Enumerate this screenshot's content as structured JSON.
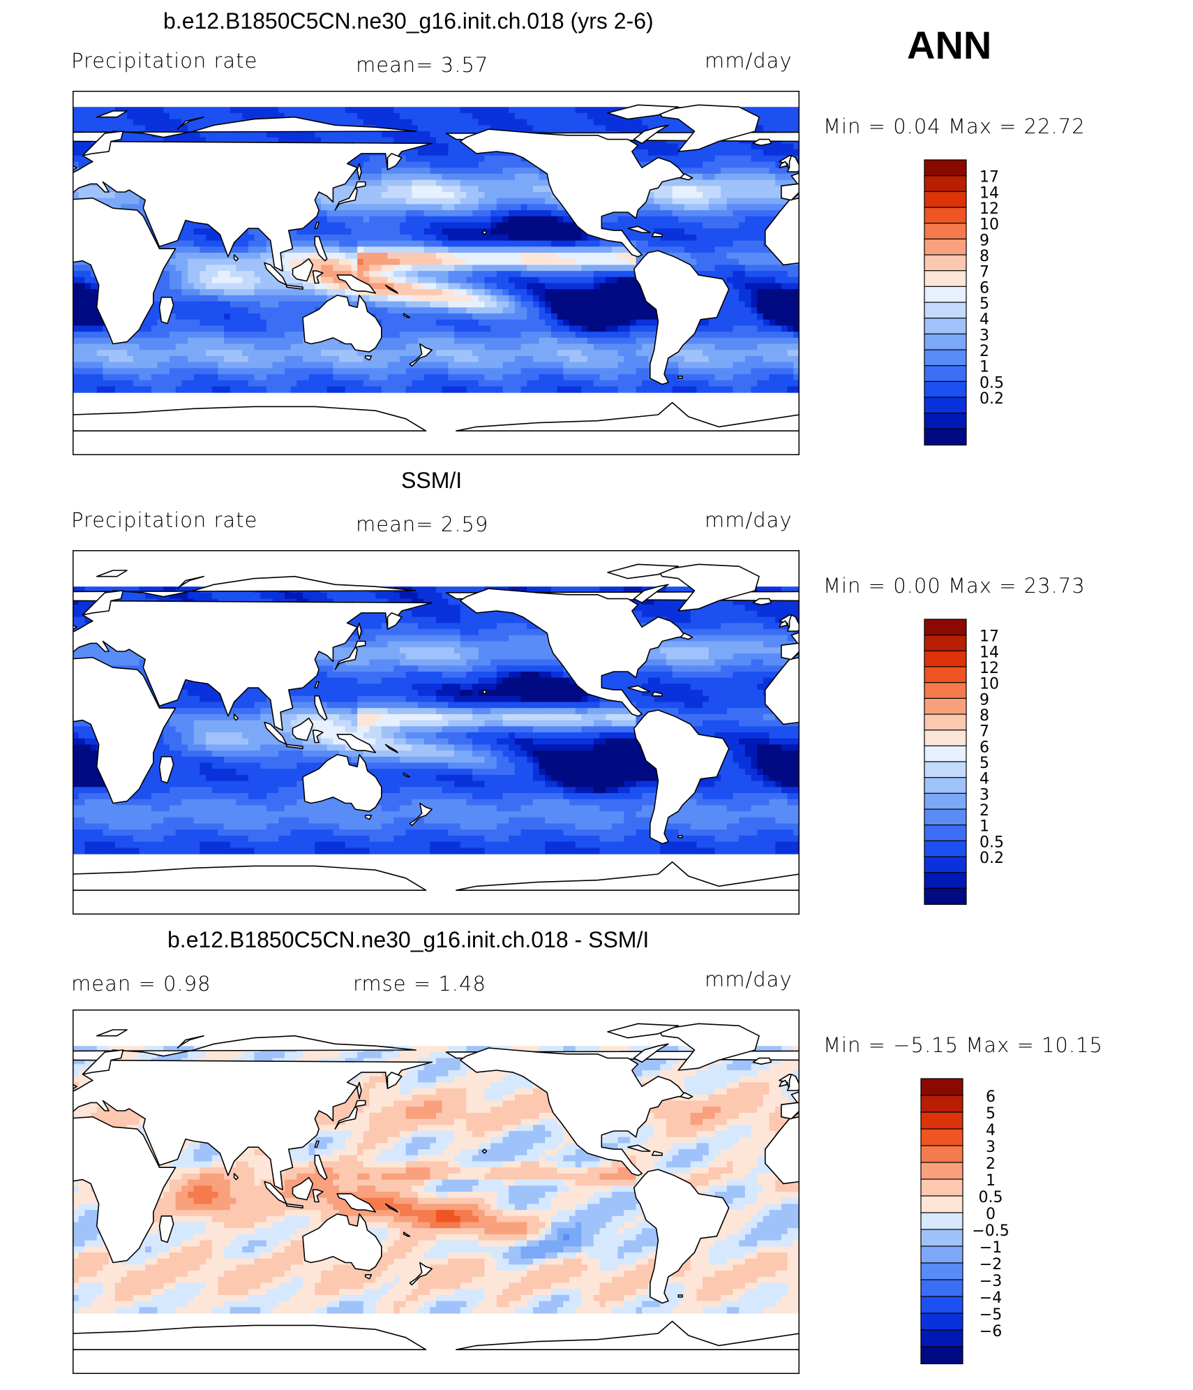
{
  "season": "ANN",
  "colors": {
    "precip_scale": [
      "#000a82",
      "#0018b4",
      "#0a32dc",
      "#1c50f0",
      "#3c6ef5",
      "#5a8cf7",
      "#7ca8f8",
      "#a0c2fa",
      "#c4dafc",
      "#e6f0fe",
      "#fde6d8",
      "#fcc8b0",
      "#f9a07c",
      "#f57a4c",
      "#ef5522",
      "#dc3408",
      "#b81e02",
      "#8a0a00"
    ],
    "diff_scale": [
      "#000a82",
      "#0018b4",
      "#0a32dc",
      "#1c50f0",
      "#3c6ef5",
      "#5a8cf7",
      "#7ca8f8",
      "#a0c2fa",
      "#d6e8fd",
      "#fde6d8",
      "#fcc8b0",
      "#f9a07c",
      "#f57a4c",
      "#ef5522",
      "#dc3408",
      "#b81e02",
      "#8a0a00"
    ],
    "land": "#ffffff",
    "coast": "#000000"
  },
  "panels": [
    {
      "title": "b.e12.B1850C5CN.ne30_g16.init.ch.018 (yrs 2-6)",
      "left_label": "Precipitation  rate",
      "mid_label": "mean=    3.57",
      "unit": "mm/day",
      "minmax": "Min  =      0.04  Max  =    22.72",
      "colorbar_levels": [
        "17",
        "14",
        "12",
        "10",
        "9",
        "8",
        "7",
        "6",
        "5",
        "4",
        "3",
        "2",
        "1",
        "0.5",
        "0.2"
      ],
      "field": "model"
    },
    {
      "title": "SSM/I",
      "left_label": "Precipitation  rate",
      "mid_label": "mean=    2.59",
      "unit": "mm/day",
      "minmax": "Min  =      0.00  Max  =    23.73",
      "colorbar_levels": [
        "17",
        "14",
        "12",
        "10",
        "9",
        "8",
        "7",
        "6",
        "5",
        "4",
        "3",
        "2",
        "1",
        "0.5",
        "0.2"
      ],
      "field": "obs"
    },
    {
      "title": "b.e12.B1850C5CN.ne30_g16.init.ch.018 - SSM/I",
      "left_label": "mean  =      0.98",
      "mid_label": "rmse  =      1.48",
      "unit": "mm/day",
      "minmax": "Min  =    −5.15  Max  =     10.15",
      "colorbar_levels": [
        "6",
        "5",
        "4",
        "3",
        "2",
        "1",
        "0.5",
        "0",
        "−0.5",
        "−1",
        "−2",
        "−3",
        "−4",
        "−5",
        "−6"
      ],
      "field": "diff"
    }
  ]
}
